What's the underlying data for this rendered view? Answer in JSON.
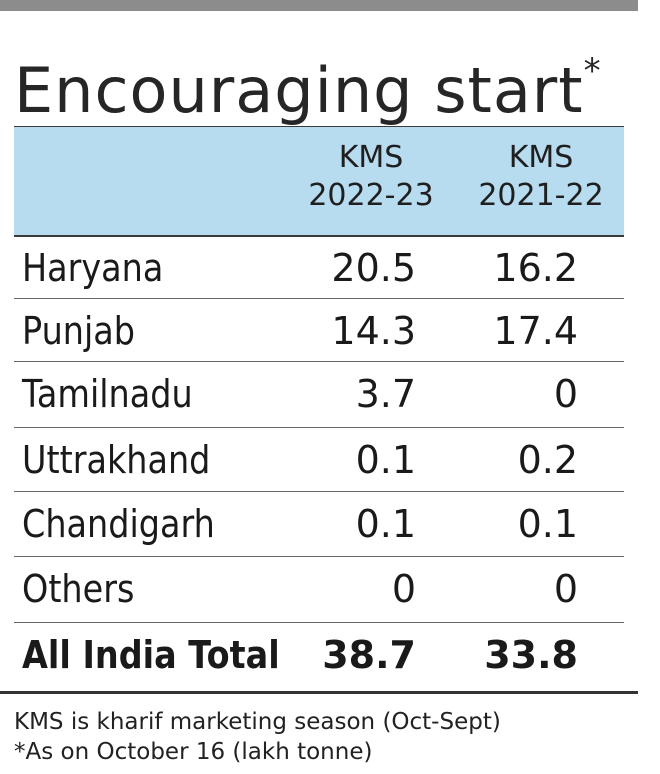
{
  "title": "Encouraging start",
  "title_marker": "*",
  "colors": {
    "top_bar": "#8c8c8c",
    "header_band": "#b7dcf0",
    "text": "#1a1a1a"
  },
  "chart_data": {
    "type": "table",
    "title": "Encouraging start*",
    "columns": [
      {
        "line1": "KMS",
        "line2": "2022-23"
      },
      {
        "line1": "KMS",
        "line2": "2021-22"
      }
    ],
    "rows": [
      {
        "label": "Haryana",
        "values": [
          "20.5",
          "16.2"
        ]
      },
      {
        "label": "Punjab",
        "values": [
          "14.3",
          "17.4"
        ]
      },
      {
        "label": "Tamilnadu",
        "values": [
          "3.7",
          "0"
        ]
      },
      {
        "label": "Uttrakhand",
        "values": [
          "0.1",
          "0.2"
        ]
      },
      {
        "label": "Chandigarh",
        "values": [
          "0.1",
          "0.1"
        ]
      },
      {
        "label": "Others",
        "values": [
          "0",
          "0"
        ]
      },
      {
        "label": "All India Total",
        "values": [
          "38.7",
          "33.8"
        ]
      }
    ],
    "footnotes": [
      "KMS is kharif marketing season (Oct-Sept)",
      "*As on October 16 (lakh tonne)"
    ]
  }
}
